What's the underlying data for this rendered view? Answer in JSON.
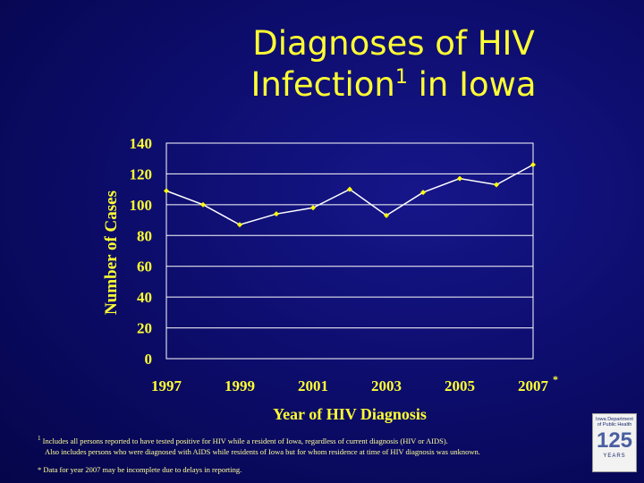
{
  "slide": {
    "title_line1": "Diagnoses of HIV",
    "title_line2_main": "Infection",
    "title_sup": "1",
    "title_line2_end": " in Iowa"
  },
  "footnotes": {
    "fn1_marker": "1",
    "fn1_line1": "Includes all persons reported to have tested positive for HIV while a resident of Iowa, regardless of current diagnosis (HIV or AIDS).",
    "fn1_line2": "Also includes persons who were diagnosed with AIDS while residents of Iowa but for whom residence at time of HIV diagnosis was unknown.",
    "fn2_marker": "*",
    "fn2_text": "Data for year 2007 may be incomplete due to delays in reporting."
  },
  "logo": {
    "org": "Iowa Department of Public Health",
    "number": "125",
    "years": "YEARS"
  },
  "colors": {
    "text": "#ffff33",
    "line": "#ffffff",
    "marker": "#ffff00",
    "grid": "#ffffff"
  },
  "chart_data": {
    "type": "line",
    "title": "Diagnoses of HIV Infection in Iowa",
    "xlabel": "Year of HIV Diagnosis",
    "ylabel": "Number of Cases",
    "ylim": [
      0,
      140
    ],
    "yticks": [
      0,
      20,
      40,
      60,
      80,
      100,
      120,
      140
    ],
    "grid": true,
    "categories": [
      "1997",
      "1998",
      "1999",
      "2000",
      "2001",
      "2002",
      "2003",
      "2004",
      "2005",
      "2006",
      "2007"
    ],
    "tick_labels": [
      "1997",
      "",
      "1999",
      "",
      "2001",
      "",
      "2003",
      "",
      "2005",
      "",
      "2007"
    ],
    "last_label_marker": "*",
    "series": [
      {
        "name": "Diagnoses",
        "values": [
          109,
          100,
          87,
          94,
          98,
          110,
          93,
          108,
          117,
          113,
          126
        ]
      }
    ]
  }
}
